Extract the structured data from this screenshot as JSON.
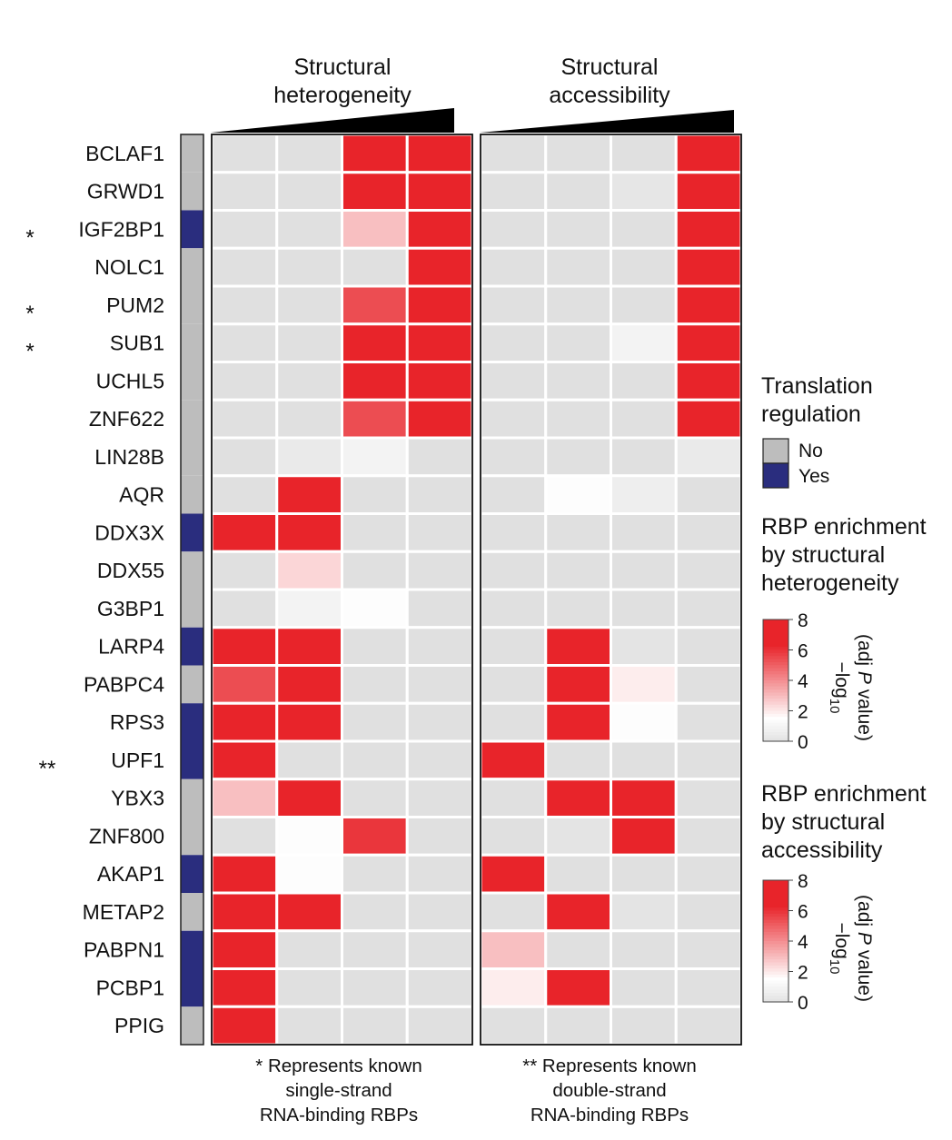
{
  "chart_data": {
    "type": "heatmap",
    "panels": [
      {
        "id": "heterogeneity",
        "title_lines": [
          "Structural",
          "heterogeneity"
        ]
      },
      {
        "id": "accessibility",
        "title_lines": [
          "Structural",
          "accessibility"
        ]
      }
    ],
    "rows": [
      "BCLAF1",
      "GRWD1",
      "IGF2BP1",
      "NOLC1",
      "PUM2",
      "SUB1",
      "UCHL5",
      "ZNF622",
      "LIN28B",
      "AQR",
      "DDX3X",
      "DDX55",
      "G3BP1",
      "LARP4",
      "PABPC4",
      "RPS3",
      "UPF1",
      "YBX3",
      "ZNF800",
      "AKAP1",
      "METAP2",
      "PABPN1",
      "PCBP1",
      "PPIG"
    ],
    "row_stars": [
      "",
      "",
      "*",
      "",
      "*",
      "*",
      "",
      "",
      "",
      "",
      "",
      "",
      "",
      "",
      "",
      "",
      "**",
      "",
      "",
      "",
      "",
      "",
      "",
      ""
    ],
    "translation_regulation": [
      "No",
      "No",
      "Yes",
      "No",
      "No",
      "No",
      "No",
      "No",
      "No",
      "No",
      "Yes",
      "No",
      "No",
      "Yes",
      "No",
      "Yes",
      "Yes",
      "No",
      "No",
      "Yes",
      "No",
      "Yes",
      "Yes",
      "No"
    ],
    "heterogeneity_values": [
      [
        0,
        0,
        8,
        8
      ],
      [
        0,
        0,
        8,
        8
      ],
      [
        0,
        0,
        3,
        8
      ],
      [
        0,
        0,
        0,
        8
      ],
      [
        0,
        0,
        5.5,
        8
      ],
      [
        0,
        0,
        8,
        8
      ],
      [
        0,
        0,
        8,
        8
      ],
      [
        0,
        0,
        5.5,
        8
      ],
      [
        0,
        0.5,
        1,
        0
      ],
      [
        0,
        7,
        0,
        0
      ],
      [
        8,
        8,
        0,
        0
      ],
      [
        0,
        2.5,
        0,
        0
      ],
      [
        0,
        1,
        1.5,
        0
      ],
      [
        7.5,
        8,
        0,
        0
      ],
      [
        5.5,
        8,
        0,
        0
      ],
      [
        8,
        8,
        0,
        0
      ],
      [
        8,
        0,
        0,
        0
      ],
      [
        3,
        8,
        0,
        0
      ],
      [
        0,
        1.5,
        6,
        0
      ],
      [
        8,
        1.5,
        0,
        0
      ],
      [
        8,
        8,
        0,
        0
      ],
      [
        8,
        0,
        0,
        0
      ],
      [
        8,
        0,
        0,
        0
      ],
      [
        7.5,
        0,
        0,
        0
      ]
    ],
    "accessibility_values": [
      [
        0,
        0,
        0,
        8
      ],
      [
        0,
        0,
        0.3,
        8
      ],
      [
        0,
        0,
        0,
        8
      ],
      [
        0,
        0,
        0,
        8
      ],
      [
        0,
        0,
        0,
        8
      ],
      [
        0,
        0,
        1,
        7.5
      ],
      [
        0,
        0,
        0,
        8
      ],
      [
        0,
        0,
        0,
        8
      ],
      [
        0,
        0,
        0,
        0.5
      ],
      [
        0,
        1.5,
        0.7,
        0
      ],
      [
        0,
        0,
        0,
        0
      ],
      [
        0,
        0,
        0,
        0
      ],
      [
        0,
        0,
        0,
        0
      ],
      [
        0,
        8,
        0.2,
        0
      ],
      [
        0,
        8,
        2,
        0
      ],
      [
        0,
        8,
        1.5,
        0
      ],
      [
        8,
        0,
        0,
        0
      ],
      [
        0,
        8,
        8,
        0
      ],
      [
        0,
        0.2,
        8,
        0
      ],
      [
        8,
        0,
        0,
        0
      ],
      [
        0,
        8,
        0.2,
        0
      ],
      [
        3,
        0,
        0,
        0
      ],
      [
        2,
        6.5,
        0,
        0
      ],
      [
        0,
        0,
        0,
        0
      ]
    ],
    "color_scale": {
      "min": 0,
      "max": 8,
      "low_color": "#e0e0e0",
      "mid_color": "#ffffff",
      "high_color": "#e8242a"
    }
  },
  "legend": {
    "translation_title_lines": [
      "Translation",
      "regulation"
    ],
    "categories": [
      {
        "label": "No",
        "color": "#bdbdbd"
      },
      {
        "label": "Yes",
        "color": "#2a2d7e"
      }
    ],
    "het_title_lines": [
      "RBP enrichment",
      "by structural",
      "heterogeneity"
    ],
    "acc_title_lines": [
      "RBP enrichment",
      "by structural",
      "accessibility"
    ],
    "ticks": [
      "0",
      "2",
      "4",
      "6",
      "8"
    ],
    "axis_label_main": "−log",
    "axis_label_sub": "10",
    "axis_label_line2": "(adj ",
    "axis_label_italic": "P",
    "axis_label_end": " value)"
  },
  "footnotes": {
    "single": [
      "* Represents known",
      "single-strand",
      "RNA-binding RBPs"
    ],
    "double": [
      "** Represents known",
      "double-strand",
      "RNA-binding RBPs"
    ]
  }
}
